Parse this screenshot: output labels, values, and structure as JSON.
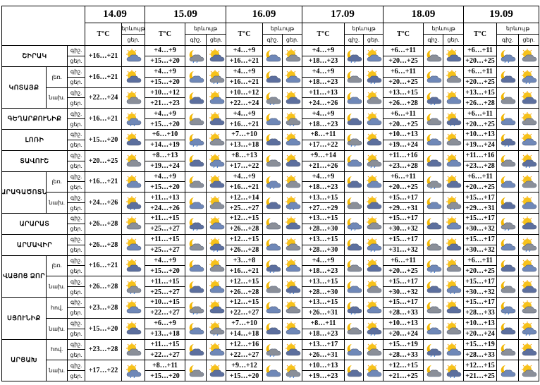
{
  "header": {
    "dates": [
      "14.09",
      "15.09",
      "16.09",
      "17.09",
      "18.09",
      "19.09"
    ],
    "temp": "T°C",
    "phenomenon": "երևույթ",
    "night": "գիշ.",
    "day": "ցեր."
  },
  "regions": [
    {
      "name": "ՇԻՐԱԿ",
      "rows": [
        {
          "d14": "+16…+21",
          "temps": [
            [
              "+4…+9",
              "+15…+20"
            ],
            [
              "+4…+9",
              "+16…+21"
            ],
            [
              "+4…+9",
              "+18…+23"
            ],
            [
              "+6…+11",
              "+20…+25"
            ],
            [
              "+6…+11",
              "+20…+25"
            ]
          ]
        }
      ]
    },
    {
      "name": "ԿՈՏԱՅՔ",
      "rows": [
        {
          "label": "լեռ.",
          "d14": "+16…+21",
          "temps": [
            [
              "+4…+9",
              "+15…+20"
            ],
            [
              "+4…+9",
              "+16…+21"
            ],
            [
              "+4…+9",
              "+18…+23"
            ],
            [
              "+6…+11",
              "+20…+25"
            ],
            [
              "+6…+11",
              "+20…+25"
            ]
          ]
        },
        {
          "label": "նախ.",
          "d14": "+22…+24",
          "temps": [
            [
              "+10…+12",
              "+21…+23"
            ],
            [
              "+10…+12",
              "+22…+24"
            ],
            [
              "+11…+13",
              "+24…+26"
            ],
            [
              "+13…+15",
              "+26…+28"
            ],
            [
              "+13…+15",
              "+26…+28"
            ]
          ]
        }
      ]
    },
    {
      "name": "ԳԵՂԱՐՔՈՒՆԻՔ",
      "rows": [
        {
          "d14": "+16…+21",
          "temps": [
            [
              "+4…+9",
              "+15…+20"
            ],
            [
              "+4…+9",
              "+16…+21"
            ],
            [
              "+4…+9",
              "+18…+23"
            ],
            [
              "+6…+11",
              "+20…+25"
            ],
            [
              "+6…+11",
              "+20…+25"
            ]
          ]
        }
      ]
    },
    {
      "name": "ԼՈՌԻ",
      "rows": [
        {
          "d14": "+15…+20",
          "temps": [
            [
              "+6…+10",
              "+14…+19"
            ],
            [
              "+7…+10",
              "+13…+18"
            ],
            [
              "+8…+11",
              "+17…+22"
            ],
            [
              "+10…+13",
              "+19…+24"
            ],
            [
              "+10…+13",
              "+19…+24"
            ]
          ]
        }
      ]
    },
    {
      "name": "ՏԱՎՈՒՇ",
      "rows": [
        {
          "d14": "+20…+25",
          "temps": [
            [
              "+8…+13",
              "+19…+24"
            ],
            [
              "+8…+13",
              "+17…+22"
            ],
            [
              "+9…+14",
              "+21…+26"
            ],
            [
              "+11…+16",
              "+23…+28"
            ],
            [
              "+11…+16",
              "+23…+28"
            ]
          ]
        }
      ]
    },
    {
      "name": "ԱՐԱԳԱԾՈՏՆ",
      "rows": [
        {
          "label": "լեռ.",
          "d14": "+16…+21",
          "temps": [
            [
              "+4…+9",
              "+15…+20"
            ],
            [
              "+4…+9",
              "+16…+21"
            ],
            [
              "+4…+9",
              "+18…+23"
            ],
            [
              "+6…+11",
              "+20…+25"
            ],
            [
              "+6…+11",
              "+20…+25"
            ]
          ]
        },
        {
          "label": "նախ.",
          "d14": "+24…+26",
          "temps": [
            [
              "+11…+13",
              "+24…+26"
            ],
            [
              "+12…+14",
              "+25…+27"
            ],
            [
              "+13…+15",
              "+27…+29"
            ],
            [
              "+15…+17",
              "+29…+31"
            ],
            [
              "+15…+17",
              "+29…+31"
            ]
          ]
        }
      ]
    },
    {
      "name": "ԱՐԱՐԱՏ",
      "rows": [
        {
          "d14": "+26…+28",
          "temps": [
            [
              "+11…+15",
              "+25…+27"
            ],
            [
              "+12…+15",
              "+26…+28"
            ],
            [
              "+13…+15",
              "+28…+30"
            ],
            [
              "+15…+17",
              "+30…+32"
            ],
            [
              "+15…+17",
              "+30…+32"
            ]
          ]
        }
      ]
    },
    {
      "name": "ԱՐՄԱՎԻՐ",
      "rows": [
        {
          "d14": "+26…+28",
          "temps": [
            [
              "+11…+15",
              "+25…+27"
            ],
            [
              "+12…+15",
              "+26…+28"
            ],
            [
              "+13…+15",
              "+28…+30"
            ],
            [
              "+15…+17",
              "+31…+32"
            ],
            [
              "+15…+17",
              "+30…+32"
            ]
          ]
        }
      ]
    },
    {
      "name": "ՎԱՅՈՑ ՁՈՐ",
      "rows": [
        {
          "label": "լեռ.",
          "d14": "+16…+21",
          "temps": [
            [
              "+4…+9",
              "+15…+20"
            ],
            [
              "+3…+8",
              "+16…+21"
            ],
            [
              "+4…+9",
              "+18…+23"
            ],
            [
              "+6…+11",
              "+20…+25"
            ],
            [
              "+6…+11",
              "+20…+25"
            ]
          ]
        },
        {
          "label": "նախ.",
          "d14": "+26…+28",
          "temps": [
            [
              "+11…+15",
              "+25…+27"
            ],
            [
              "+12…+15",
              "+26…+28"
            ],
            [
              "+13…+15",
              "+28…+30"
            ],
            [
              "+15…+17",
              "+30…+32"
            ],
            [
              "+15…+17",
              "+30…+32"
            ]
          ]
        }
      ]
    },
    {
      "name": "ՍՅՈՒՆԻՔ",
      "rows": [
        {
          "label": "հով.",
          "d14": "+23…+28",
          "temps": [
            [
              "+10…+15",
              "+22…+27"
            ],
            [
              "+12…+15",
              "+22…+27"
            ],
            [
              "+13…+15",
              "+26…+31"
            ],
            [
              "+15…+17",
              "+28…+33"
            ],
            [
              "+15…+17",
              "+28…+33"
            ]
          ]
        },
        {
          "label": "նախ.",
          "d14": "+15…+20",
          "temps": [
            [
              "+6…+9",
              "+13…+18"
            ],
            [
              "+7…+10",
              "+14…+18"
            ],
            [
              "+8…+11",
              "+18…+23"
            ],
            [
              "+10…+13",
              "+20…+24"
            ],
            [
              "+10…+13",
              "+20…+24"
            ]
          ]
        }
      ]
    },
    {
      "name": "ԱՐՑԱԽ",
      "rows": [
        {
          "label": "հով.",
          "d14": "+23…+28",
          "temps": [
            [
              "+11…+15",
              "+22…+27"
            ],
            [
              "+12…+16",
              "+22…+27"
            ],
            [
              "+13…+17",
              "+26…+31"
            ],
            [
              "+15…+19",
              "+28…+33"
            ],
            [
              "+15…+19",
              "+28…+33"
            ]
          ]
        },
        {
          "label": "նախ.",
          "d14": "+17…+22",
          "temps": [
            [
              "+8…+11",
              "+15…+20"
            ],
            [
              "+9…+12",
              "+15…+20"
            ],
            [
              "+10…+13",
              "+19…+23"
            ],
            [
              "+12…+15",
              "+21…+25"
            ],
            [
              "+12…+15",
              "+21…+25"
            ]
          ]
        }
      ]
    }
  ]
}
